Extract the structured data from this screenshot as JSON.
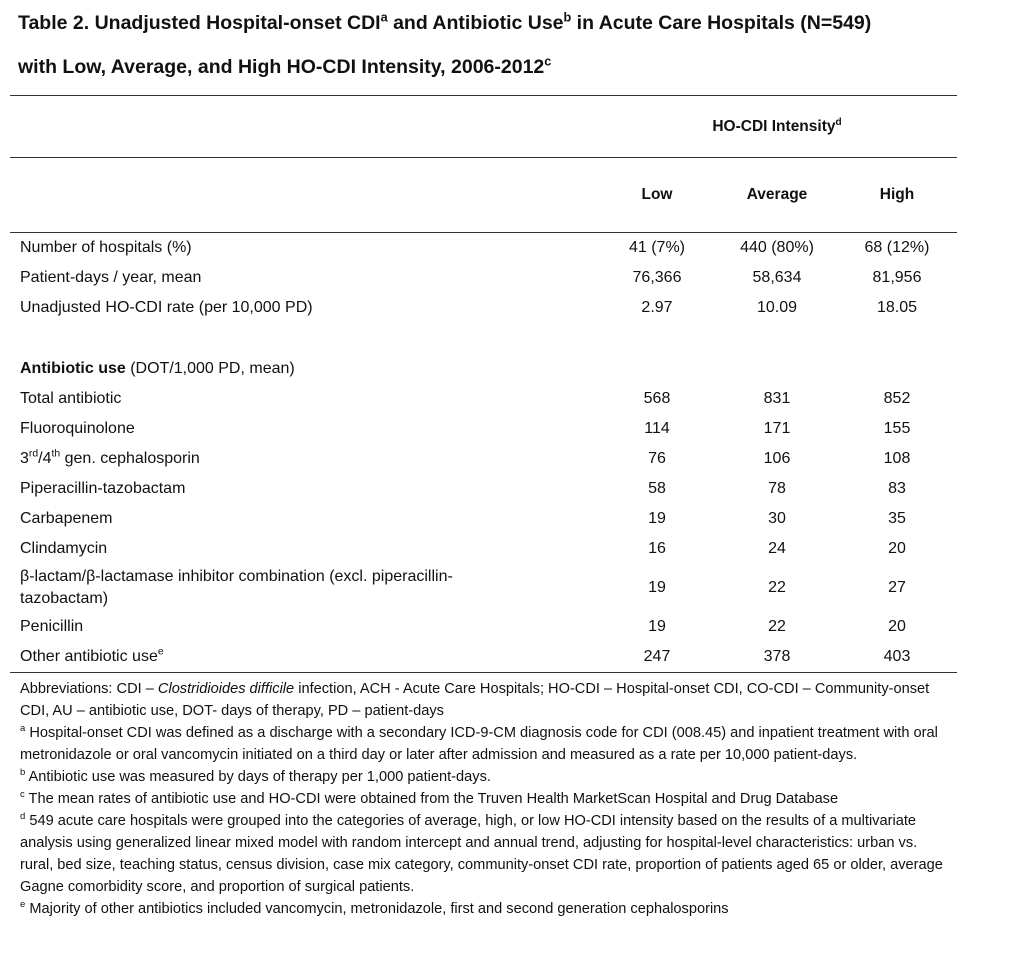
{
  "title": [
    [
      {
        "text": "Table 2. Unadjusted Hospital-onset CDI"
      },
      {
        "text": "a",
        "style": "sup"
      },
      {
        "text": " and Antibiotic Use"
      },
      {
        "text": "b",
        "style": "sup"
      },
      {
        "text": " in Acute Care Hospitals (N=549)"
      }
    ],
    [
      {
        "text": "with Low, Average, and High HO-CDI Intensity, 2006-2012"
      },
      {
        "text": "c",
        "style": "sup"
      }
    ]
  ],
  "table": {
    "group_header": [
      {
        "text": "HO-CDI Intensity"
      },
      {
        "text": "d",
        "style": "sup"
      }
    ],
    "columns": [
      "Low",
      "Average",
      "High"
    ],
    "rows": [
      {
        "label": [
          {
            "text": "Number of hospitals (%)"
          }
        ],
        "values": [
          "41 (7%)",
          "440 (80%)",
          "68 (12%)"
        ]
      },
      {
        "label": [
          {
            "text": "Patient-days / year, mean"
          }
        ],
        "values": [
          "76,366",
          "58,634",
          "81,956"
        ]
      },
      {
        "label": [
          {
            "text": "Unadjusted HO-CDI rate (per 10,000 PD)"
          }
        ],
        "values": [
          "2.97",
          "10.09",
          "18.05"
        ]
      },
      {
        "label": [
          {
            "text": "Antibiotic use",
            "style": "bold"
          },
          {
            "text": " (DOT/1,000 PD, mean)"
          }
        ]
      },
      {
        "label": [
          {
            "text": "Total antibiotic"
          }
        ],
        "values": [
          "568",
          "831",
          "852"
        ]
      },
      {
        "label": [
          {
            "text": "Fluoroquinolone"
          }
        ],
        "values": [
          "114",
          "171",
          "155"
        ]
      },
      {
        "label": [
          {
            "text": "3"
          },
          {
            "text": "rd",
            "style": "sup"
          },
          {
            "text": "/4"
          },
          {
            "text": "th",
            "style": "sup"
          },
          {
            "text": " gen. cephalosporin"
          }
        ],
        "values": [
          "76",
          "106",
          "108"
        ]
      },
      {
        "label": [
          {
            "text": "Piperacillin-tazobactam"
          }
        ],
        "values": [
          "58",
          "78",
          "83"
        ]
      },
      {
        "label": [
          {
            "text": "Carbapenem"
          }
        ],
        "values": [
          "19",
          "30",
          "35"
        ]
      },
      {
        "label": [
          {
            "text": "Clindamycin"
          }
        ],
        "values": [
          "16",
          "24",
          "20"
        ]
      },
      {
        "label": [
          {
            "text": "β-lactam/β-lactamase inhibitor combination (excl. piperacillin-tazobactam)"
          }
        ],
        "values": [
          "19",
          "22",
          "27"
        ]
      },
      {
        "label": [
          {
            "text": "Penicillin"
          }
        ],
        "values": [
          "19",
          "22",
          "20"
        ]
      },
      {
        "label": [
          {
            "text": "Other antibiotic use"
          },
          {
            "text": "e",
            "style": "sup"
          }
        ],
        "values": [
          "247",
          "378",
          "403"
        ]
      }
    ]
  },
  "footnotes": [
    [
      {
        "text": "Abbreviations: CDI – "
      },
      {
        "text": "Clostridioides difficile",
        "style": "italic"
      },
      {
        "text": " infection, ACH - Acute Care Hospitals; HO-CDI – Hospital-onset CDI, CO-CDI – Community-onset CDI, AU – antibiotic use, DOT- days of therapy, PD – patient-days"
      }
    ],
    [
      {
        "text": "a",
        "style": "sup"
      },
      {
        "text": " Hospital-onset CDI was defined as a discharge with a secondary ICD-9-CM diagnosis code for CDI (008.45) and inpatient treatment with oral metronidazole or oral vancomycin initiated on a third day or later after admission and measured as a rate per 10,000 patient-days."
      }
    ],
    [
      {
        "text": "b",
        "style": "sup"
      },
      {
        "text": " Antibiotic use was measured by days of therapy per 1,000 patient-days."
      }
    ],
    [
      {
        "text": "c",
        "style": "sup"
      },
      {
        "text": " The mean rates of antibiotic use and HO-CDI were obtained from the Truven Health MarketScan Hospital and Drug Database"
      }
    ],
    [
      {
        "text": "d",
        "style": "sup"
      },
      {
        "text": " 549 acute care hospitals were grouped into the categories of average, high, or low HO-CDI intensity based on the results of a multivariate analysis using generalized linear mixed model with random intercept and annual trend, adjusting for hospital-level characteristics: urban vs. rural, bed size, teaching status, census division, case mix category, community-onset CDI rate, proportion of patients aged 65 or older, average Gagne comorbidity score, and proportion of surgical patients."
      }
    ],
    [
      {
        "text": "e",
        "style": "sup"
      },
      {
        "text": " Majority of other antibiotics included vancomycin, metronidazole, first and second generation cephalosporins"
      }
    ]
  ]
}
